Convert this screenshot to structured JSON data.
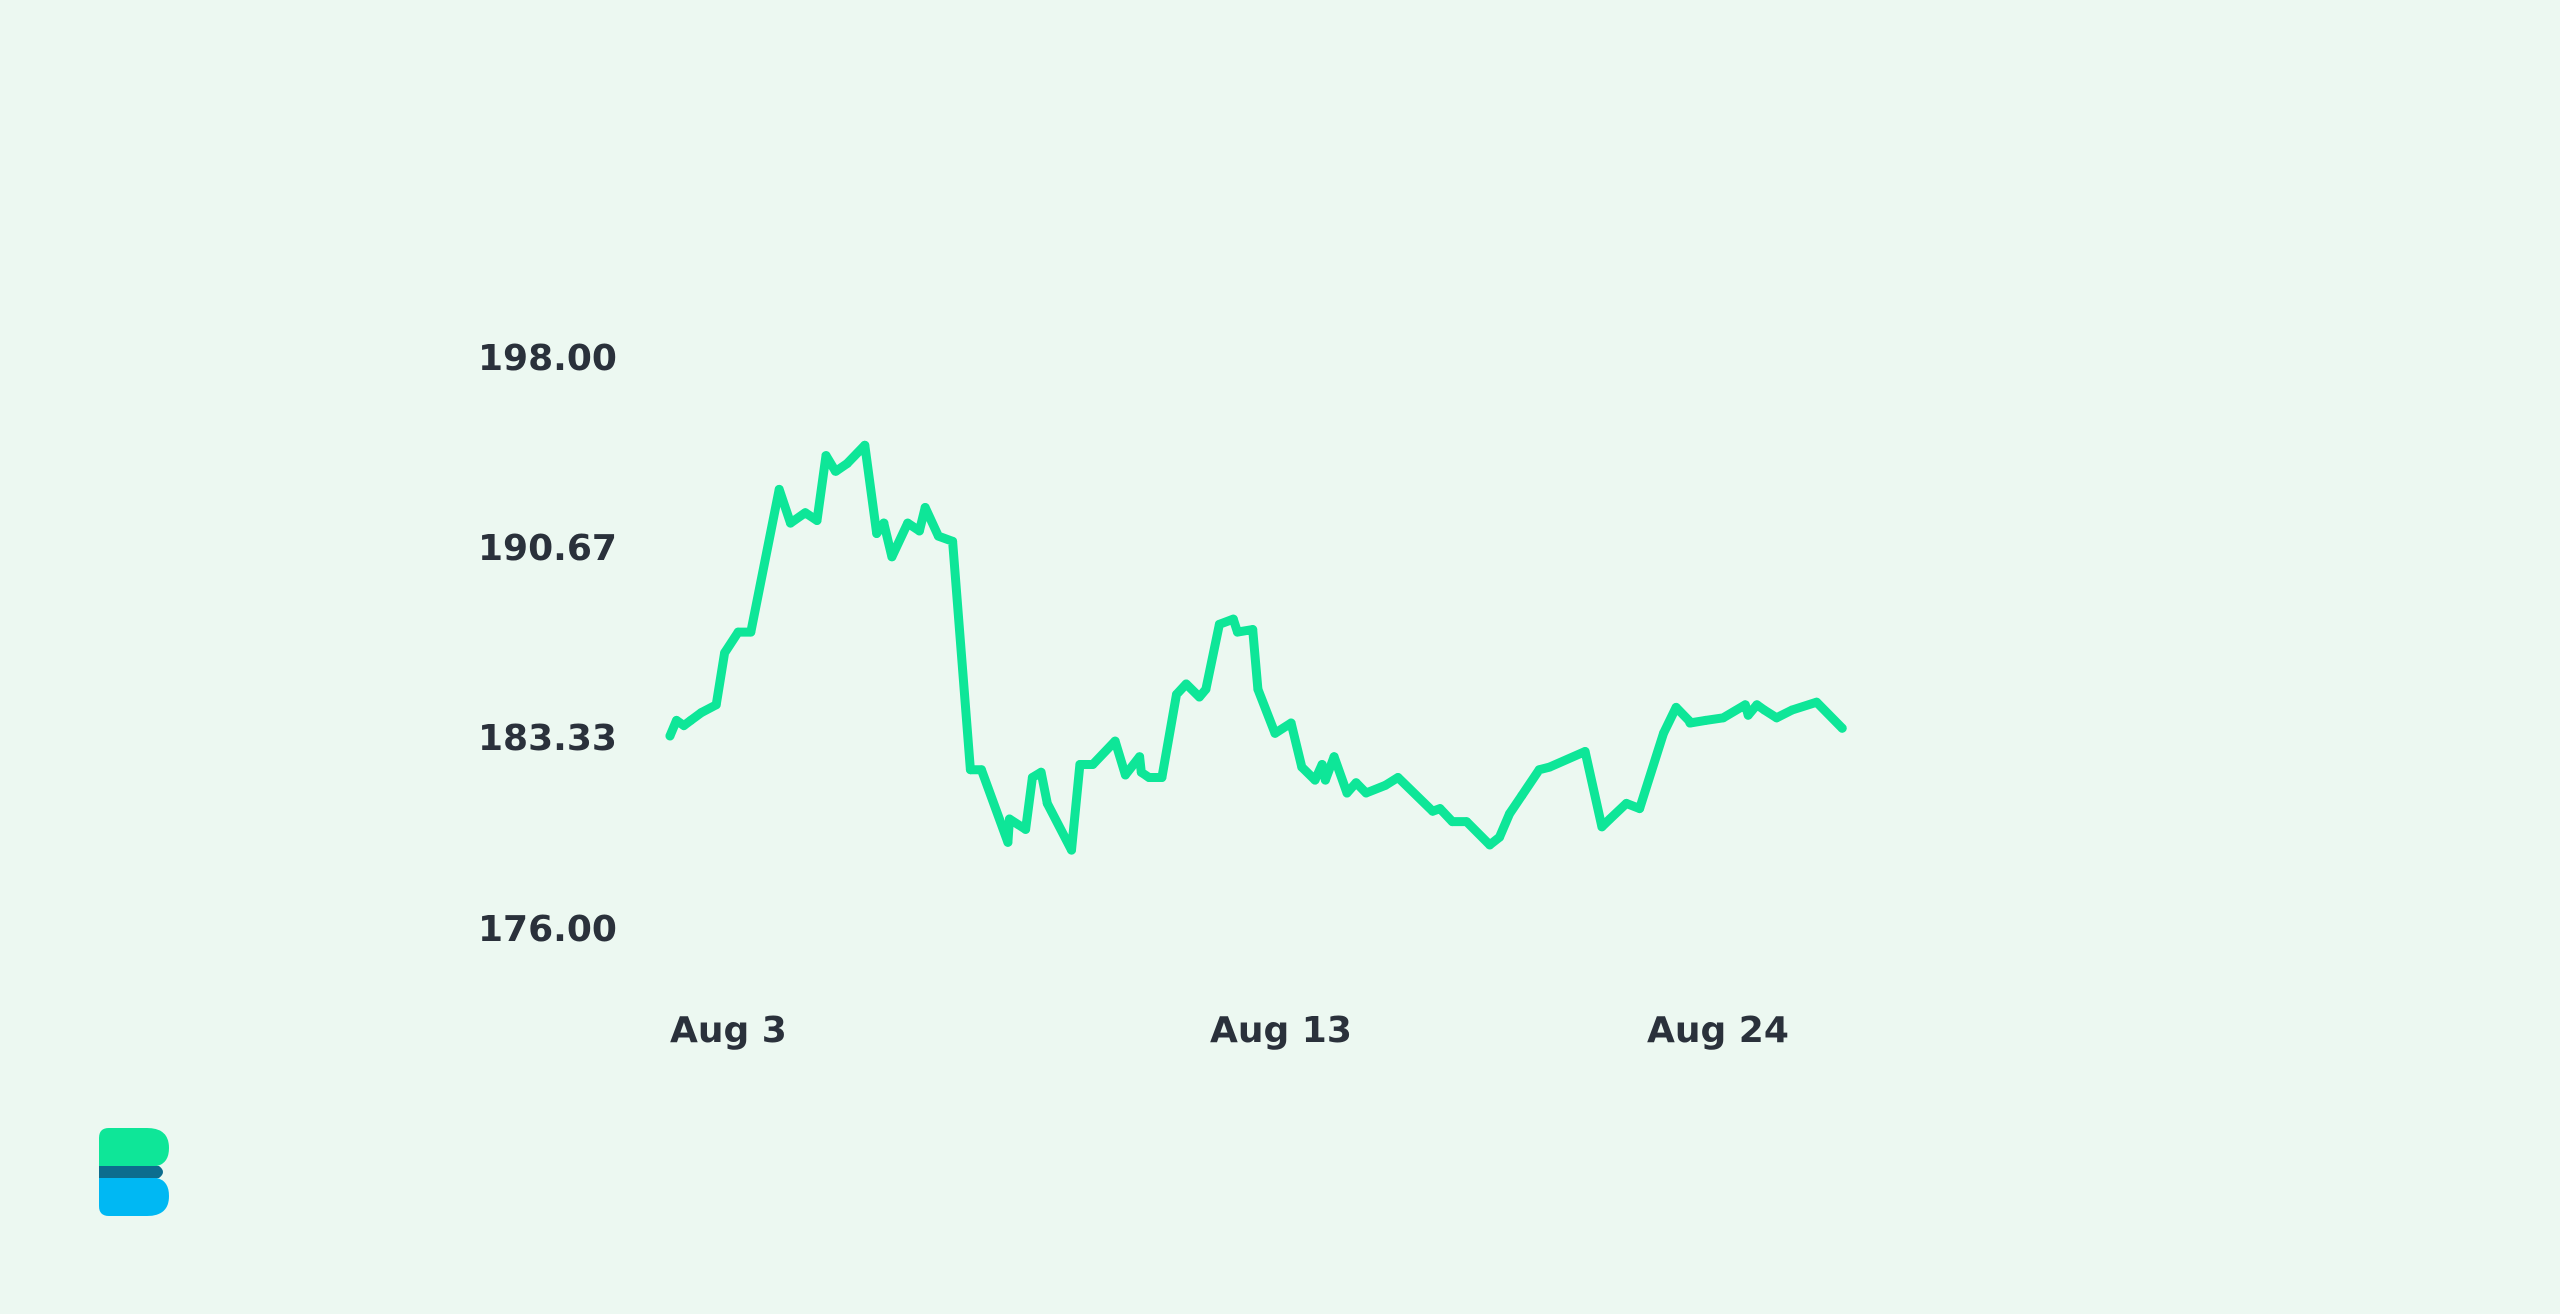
{
  "chart_data": {
    "type": "line",
    "title": "",
    "xlabel": "",
    "ylabel": "",
    "ylim": [
      176.0,
      198.0
    ],
    "y_ticks": [
      "198.00",
      "190.67",
      "183.33",
      "176.00"
    ],
    "x_ticks": [
      {
        "label": "Aug 3",
        "x": 0
      },
      {
        "label": "Aug 13",
        "x": 14.43
      },
      {
        "label": "Aug 24",
        "x": 26.13
      }
    ],
    "grid": false,
    "line_color": "#0ee698",
    "series": [
      {
        "x": [
          0,
          0.2,
          0.43,
          0.64,
          0.97,
          1.43,
          1.69,
          2.11,
          2.5,
          3.38,
          3.73,
          4.19,
          4.55,
          4.83,
          5.12,
          5.14,
          5.49,
          6.03,
          6.4,
          6.62,
          6.62,
          6.87,
          7.36,
          7.72,
          7.9,
          8.31,
          8.75,
          9.3,
          9.64,
          10.46,
          10.51,
          11.01,
          11.22,
          11.49,
          11.68,
          11.68,
          12.43,
          12.69,
          13.09,
          13.78,
          14.1,
          14.54,
          14.59,
          14.83,
          15.23,
          15.68,
          15.98,
          16.39,
          16.59,
          17.01,
          17.44,
          17.57,
          18.04,
          18.2,
          18.73,
          19.23,
          19.56,
          19.97,
          20.19,
          20.29,
          20.56,
          20.96,
          21.24,
          21.55,
          22.15,
          22.54,
          23.61,
          23.84,
          24.22,
          24.66,
          25.38,
          25.68,
          25.99,
          26.37,
          26.91,
          27.23,
          28.33,
          28.85,
          29.1,
          29.61,
          30.02,
          30.76,
          31.15,
          31.54,
          31.58,
          32.06,
          32.61,
          33.29,
          33.38,
          33.65,
          33.88,
          34.26,
          34.74,
          35.5,
          36.29
        ],
        "y": [
          183.4,
          184.0,
          183.8,
          184.0,
          184.3,
          184.6,
          186.6,
          187.4,
          187.4,
          192.9,
          191.6,
          192.0,
          191.7,
          194.2,
          193.6,
          193.6,
          193.9,
          194.6,
          191.2,
          191.6,
          191.6,
          190.3,
          191.6,
          191.3,
          192.2,
          191.1,
          190.9,
          182.1,
          182.1,
          179.3,
          180.2,
          179.8,
          181.8,
          182.0,
          180.8,
          180.8,
          179.0,
          182.3,
          182.3,
          183.2,
          181.9,
          182.6,
          182.0,
          181.8,
          181.8,
          185.0,
          185.4,
          184.9,
          185.2,
          187.7,
          187.9,
          187.4,
          187.5,
          185.2,
          183.5,
          183.9,
          182.2,
          181.7,
          182.3,
          181.7,
          182.6,
          181.2,
          181.6,
          181.2,
          181.5,
          181.8,
          180.5,
          180.6,
          180.1,
          180.1,
          179.2,
          179.5,
          180.4,
          181.1,
          182.1,
          182.2,
          182.8,
          179.9,
          180.2,
          180.8,
          180.6,
          183.5,
          184.5,
          184.0,
          183.9,
          184.0,
          184.1,
          184.6,
          184.2,
          184.6,
          184.4,
          184.1,
          184.4,
          184.7,
          183.7
        ]
      }
    ]
  },
  "logo": {
    "top_color": "#0ee698",
    "middle_color": "#0c6d8e",
    "bottom_color": "#00b8f3"
  }
}
